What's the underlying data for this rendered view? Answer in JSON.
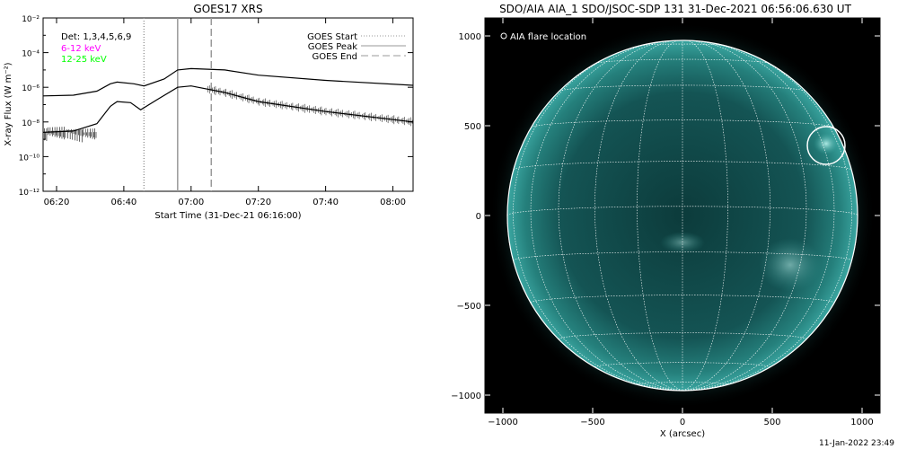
{
  "chart_data": [
    {
      "type": "line",
      "title": "GOES17 XRS",
      "xlabel": "Start Time (31-Dec-21 06:16:00)",
      "ylabel": "X-ray Flux (W m⁻²)",
      "y_scale": "log",
      "ylim": [
        1e-12,
        0.01
      ],
      "xlim": [
        "06:16",
        "08:06"
      ],
      "x_ticks": [
        "06:20",
        "06:40",
        "07:00",
        "07:20",
        "07:40",
        "08:00"
      ],
      "y_ticks": [
        "10⁻¹²",
        "10⁻¹⁰",
        "10⁻⁸",
        "10⁻⁶",
        "10⁻⁴",
        "10⁻²"
      ],
      "annotations": {
        "detectors": "Det: 1,3,4,5,6,9",
        "band_low": "6-12 keV",
        "band_high": "12-25 keV"
      },
      "legend_position": "top-right",
      "legend": [
        {
          "label": "GOES Start",
          "style": "dotted",
          "time": "06:46"
        },
        {
          "label": "GOES Peak",
          "style": "solid",
          "time": "06:56"
        },
        {
          "label": "GOES End",
          "style": "dashed",
          "time": "07:06"
        }
      ],
      "series": [
        {
          "band": "low",
          "x": [
            "06:16",
            "06:25",
            "06:32",
            "06:36",
            "06:38",
            "06:43",
            "06:46",
            "06:52",
            "06:56",
            "07:00",
            "07:10",
            "07:20",
            "07:40",
            "08:06"
          ],
          "y": [
            3.2e-07,
            3.5e-07,
            6e-07,
            1.6e-06,
            2e-06,
            1.6e-06,
            1.2e-06,
            3e-06,
            1e-05,
            1.2e-05,
            1e-05,
            5e-06,
            2.5e-06,
            1.3e-06
          ]
        },
        {
          "band": "high",
          "x": [
            "06:16",
            "06:25",
            "06:32",
            "06:36",
            "06:38",
            "06:42",
            "06:45",
            "06:50",
            "06:56",
            "07:00",
            "07:10",
            "07:20",
            "07:40",
            "08:06"
          ],
          "y": [
            2.5e-09,
            3e-09,
            8e-09,
            8e-08,
            1.5e-07,
            1.3e-07,
            5e-08,
            2e-07,
            1e-06,
            1.2e-06,
            5e-07,
            1.5e-07,
            4e-08,
            1e-08
          ]
        }
      ],
      "colors": {
        "axes": "#000000",
        "curves": "#000000",
        "band_low": "#ff00ff",
        "band_high": "#00ff00",
        "markers": "#999999"
      }
    },
    {
      "type": "scatter",
      "title": "SDO/AIA AIA_1 SDO/JSOC-SDP 131 31-Dec-2021 06:56:06.630 UT",
      "xlabel": "X (arcsec)",
      "ylabel": "",
      "xlim": [
        -1100,
        1100
      ],
      "ylim": [
        -1100,
        1100
      ],
      "x_ticks": [
        -1000,
        -500,
        0,
        500,
        1000
      ],
      "y_ticks": [
        -1000,
        -500,
        0,
        500,
        1000
      ],
      "legend": [
        "AIA flare location"
      ],
      "legend_position": "top-left",
      "solar_radius": 976,
      "grid": "heliographic, 15° spacing",
      "flare_location": {
        "x": 800,
        "y": 390,
        "radius": 105
      },
      "colors": {
        "disk_center": "#0c3b3b",
        "disk_limb": "#3aa5a0",
        "background": "#000000",
        "grid": "#ffffff"
      }
    }
  ],
  "footer": {
    "timestamp": "11-Jan-2022 23:49"
  }
}
